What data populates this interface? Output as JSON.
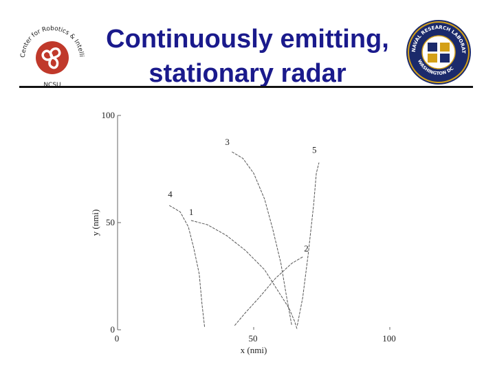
{
  "slide": {
    "title_line1": "Continuously emitting,",
    "title_line2": "stationary radar"
  },
  "logos": {
    "left": {
      "text_top": "Center for Robotics & Intelligent Machines",
      "text_bottom": "NCSU",
      "accent": "#c0392b"
    },
    "right": {
      "text_top": "NAVAL RESEARCH LABORATORY",
      "text_bottom": "WASHINGTON DC",
      "accent": "#1b2a6b",
      "gold": "#d4a017"
    }
  },
  "chart_data": {
    "type": "line",
    "xlabel": "x (nmi)",
    "ylabel": "y (nmi)",
    "xlim": [
      0,
      100
    ],
    "ylim": [
      0,
      100
    ],
    "xticks": [
      "0",
      "50",
      "100"
    ],
    "yticks": [
      "0",
      "50",
      "100"
    ],
    "grid": false,
    "series": [
      {
        "name": "1",
        "x": [
          27,
          33,
          40,
          47,
          54,
          59,
          63,
          65,
          66
        ],
        "y": [
          51,
          49,
          44,
          37,
          28,
          18,
          10,
          4,
          0
        ]
      },
      {
        "name": "2",
        "x": [
          43,
          47,
          52,
          58,
          64,
          68
        ],
        "y": [
          2,
          8,
          15,
          24,
          31,
          34
        ]
      },
      {
        "name": "3",
        "x": [
          42,
          46,
          50,
          54,
          57,
          60,
          62,
          64
        ],
        "y": [
          83,
          80,
          73,
          61,
          47,
          31,
          16,
          2
        ]
      },
      {
        "name": "4",
        "x": [
          19,
          23,
          26,
          28,
          30,
          31,
          32
        ],
        "y": [
          58,
          55,
          48,
          38,
          26,
          12,
          1
        ]
      },
      {
        "name": "5",
        "x": [
          66,
          68,
          70,
          72,
          73,
          74
        ],
        "y": [
          2,
          15,
          35,
          58,
          73,
          78
        ]
      }
    ]
  }
}
